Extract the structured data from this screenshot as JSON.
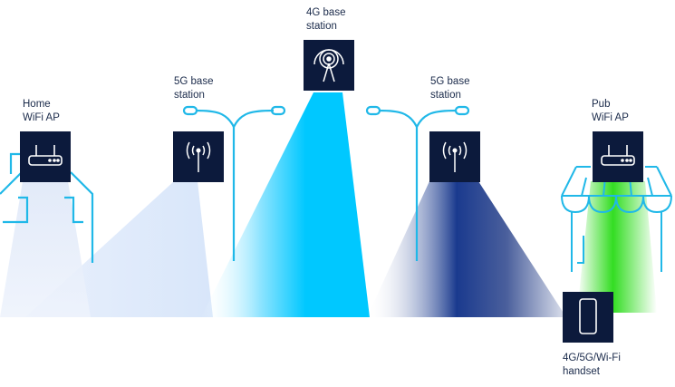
{
  "labels": {
    "home_ap": [
      "Home",
      "WiFi AP"
    ],
    "bs5g_left": [
      "5G base",
      "station"
    ],
    "bs4g": [
      "4G base",
      "station"
    ],
    "bs5g_right": [
      "5G base",
      "station"
    ],
    "pub_ap": [
      "Pub",
      "WiFi AP"
    ],
    "handset": [
      "4G/5G/Wi-Fi",
      "handset"
    ]
  },
  "colors": {
    "navy": "#0c1a3c",
    "cyan": "#00c8ff",
    "outline": "#20b8e8",
    "dark_blue": "#1a3a8e",
    "green": "#33dd22",
    "pale": "#e6eefc"
  }
}
